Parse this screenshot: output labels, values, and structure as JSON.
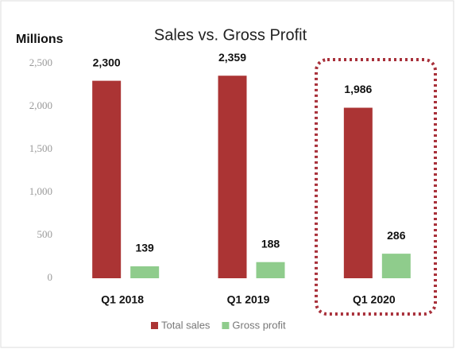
{
  "chart_data": {
    "type": "bar",
    "title": "Sales vs. Gross Profit",
    "y_axis_label": "Millions",
    "categories": [
      "Q1 2018",
      "Q1 2019",
      "Q1 2020"
    ],
    "series": [
      {
        "name": "Total sales",
        "color": "#ab3434",
        "values": [
          2300,
          2359,
          1986
        ],
        "value_labels": [
          "2,300",
          "2,359",
          "1,986"
        ]
      },
      {
        "name": "Gross profit",
        "color": "#8fcc8c",
        "values": [
          139,
          188,
          286
        ]
      }
    ],
    "ylim": [
      0,
      2500
    ],
    "yticks": [
      0,
      500,
      {
        "value": 1000,
        "label": "1,000"
      },
      {
        "value": 1500,
        "label": "1,500"
      },
      {
        "value": 2000,
        "label": "2,000"
      },
      {
        "value": 2500,
        "label": "2,500"
      }
    ],
    "grid": false,
    "legend": "bottom"
  }
}
